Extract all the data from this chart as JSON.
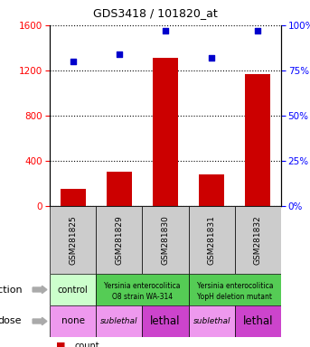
{
  "title": "GDS3418 / 101820_at",
  "samples": [
    "GSM281825",
    "GSM281829",
    "GSM281830",
    "GSM281831",
    "GSM281832"
  ],
  "counts": [
    155,
    305,
    1310,
    280,
    1165
  ],
  "percentiles": [
    80,
    84,
    97,
    82,
    97
  ],
  "ylim_left": [
    0,
    1600
  ],
  "ylim_right": [
    0,
    100
  ],
  "yticks_left": [
    0,
    400,
    800,
    1200,
    1600
  ],
  "yticks_right": [
    0,
    25,
    50,
    75,
    100
  ],
  "bar_color": "#cc0000",
  "dot_color": "#0000cc",
  "infection_bg_light": "#ccffcc",
  "infection_bg_dark": "#55cc55",
  "dose_bg_light": "#ee99ee",
  "dose_bg_dark": "#cc44cc",
  "sample_bg": "#cccccc",
  "dose_colors": [
    "#ee99ee",
    "#ee99ee",
    "#cc44cc",
    "#ee99ee",
    "#cc44cc"
  ],
  "dose_labels": [
    "none",
    "sublethal",
    "lethal",
    "sublethal",
    "lethal"
  ],
  "legend_count_color": "#cc0000",
  "legend_pct_color": "#0000cc"
}
